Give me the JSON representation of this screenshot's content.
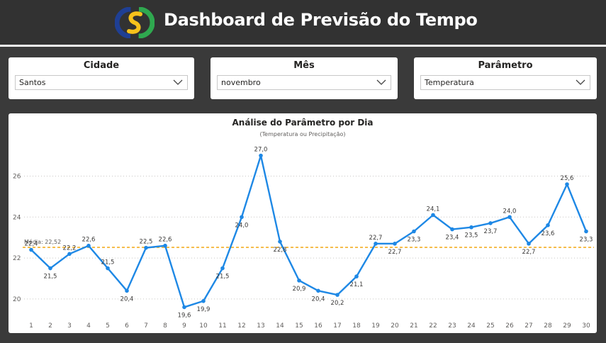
{
  "header": {
    "title": "Dashboard de Previsão do Tempo",
    "logo_icon": "weather-logo-icon",
    "colors": {
      "logo_blue": "#1f3f94",
      "logo_yellow": "#f7c21b",
      "logo_green": "#2fa84f"
    }
  },
  "filters": {
    "city": {
      "label": "Cidade",
      "value": "Santos"
    },
    "month": {
      "label": "Mês",
      "value": "novembro"
    },
    "parameter": {
      "label": "Parâmetro",
      "value": "Temperatura"
    }
  },
  "chart_data": {
    "type": "line",
    "title": "Análise do Parâmetro por Dia",
    "subtitle": "(Temperatura ou Precipitação)",
    "x": [
      1,
      2,
      3,
      4,
      5,
      6,
      7,
      8,
      9,
      10,
      11,
      12,
      13,
      14,
      15,
      16,
      17,
      18,
      19,
      20,
      21,
      22,
      23,
      24,
      25,
      26,
      27,
      28,
      29,
      30
    ],
    "series": [
      {
        "values": [
          22.4,
          21.5,
          22.2,
          22.6,
          21.5,
          20.4,
          22.5,
          22.6,
          19.6,
          19.9,
          21.5,
          24.0,
          27.0,
          22.8,
          20.9,
          20.4,
          20.2,
          21.1,
          22.7,
          22.7,
          23.3,
          24.1,
          23.4,
          23.5,
          23.7,
          24.0,
          22.7,
          23.6,
          25.6,
          23.3
        ]
      }
    ],
    "data_labels": [
      "22,4",
      "21,5",
      "22,2",
      "22,6",
      "21,5",
      "20,4",
      "22,5",
      "22,6",
      "19,6",
      "19,9",
      "21,5",
      "24,0",
      "27,0",
      "22,8",
      "20,9",
      "20,4",
      "20,2",
      "21,1",
      "22,7",
      "22,7",
      "23,3",
      "24,1",
      "23,4",
      "23,5",
      "23,7",
      "24,0",
      "22,7",
      "23,6",
      "25,6",
      "23,3"
    ],
    "y_ticks": [
      20,
      22,
      24,
      26
    ],
    "ylim": [
      19.2,
      27.4
    ],
    "average": {
      "label": "Média: 22,52",
      "value": 22.52,
      "color": "#f5b942"
    },
    "line_color": "#1e88e5",
    "grid": true
  }
}
